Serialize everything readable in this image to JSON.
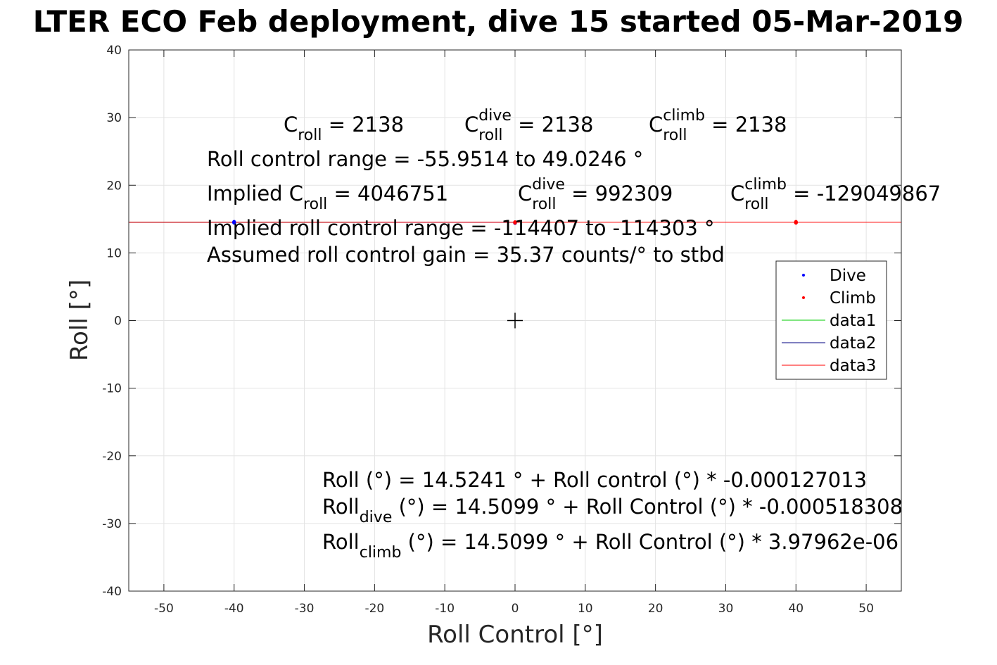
{
  "chart_data": {
    "type": "scatter",
    "title": "LTER ECO Feb deployment, dive 15 started 05-Mar-2019",
    "xlabel": "Roll Control [°]",
    "ylabel": "Roll [°]",
    "xlim": [
      -55,
      55
    ],
    "ylim": [
      -40,
      40
    ],
    "xticks": [
      -50,
      -40,
      -30,
      -20,
      -10,
      0,
      10,
      20,
      30,
      40,
      50
    ],
    "yticks": [
      -40,
      -30,
      -20,
      -10,
      0,
      10,
      20,
      30,
      40
    ],
    "xtick_labels": [
      "-50",
      "-40",
      "-30",
      "-20",
      "-10",
      "0",
      "10",
      "20",
      "30",
      "40",
      "50"
    ],
    "ytick_labels": [
      "-40",
      "-30",
      "-20",
      "-10",
      "0",
      "10",
      "20",
      "30",
      "40"
    ],
    "grid": true,
    "legend_position": "right",
    "series": [
      {
        "name": "Dive",
        "style": "points",
        "color": "#0000ff",
        "x": [
          -40,
          -40,
          -40,
          0,
          0
        ],
        "y": [
          14.55,
          14.45,
          14.6,
          14.5,
          14.4
        ]
      },
      {
        "name": "Climb",
        "style": "points",
        "color": "#ff0000",
        "x": [
          0,
          0,
          40,
          40,
          40
        ],
        "y": [
          14.55,
          14.45,
          14.6,
          14.45,
          14.5
        ]
      },
      {
        "name": "data1",
        "style": "line",
        "color": "#00cc00",
        "x": [
          -55,
          -21
        ],
        "y": [
          14.53,
          14.53
        ]
      },
      {
        "name": "data2",
        "style": "line",
        "color": "#000080",
        "x": [
          -55,
          0
        ],
        "y": [
          14.53,
          14.53
        ]
      },
      {
        "name": "data3",
        "style": "line",
        "color": "#ff0000",
        "x": [
          -55,
          55
        ],
        "y": [
          14.52,
          14.52
        ]
      }
    ],
    "center_marker": {
      "x": 0,
      "y": 0
    },
    "annotations": {
      "c_roll": {
        "base": "C",
        "sub": "roll",
        "rest": " = 2138"
      },
      "c_roll_dive": {
        "base": "C",
        "sup": "dive",
        "sub": "roll",
        "rest": " = 2138"
      },
      "c_roll_climb": {
        "base": "C",
        "sup": "climb",
        "sub": "roll",
        "rest": " = 2138"
      },
      "range": "Roll control range = -55.9514 to 49.0246 °",
      "implied_c_roll": {
        "base": "Implied C",
        "sub": "roll",
        "rest": " = 4046751"
      },
      "implied_c_roll_dive": {
        "base": "C",
        "sup": "dive",
        "sub": "roll",
        "rest": " = 992309"
      },
      "implied_c_roll_climb": {
        "base": "C",
        "sup": "climb",
        "sub": "roll",
        "rest": " = -129049867"
      },
      "implied_range": "Implied roll control range = -114407 to -114303 °",
      "gain": "Assumed roll control gain = 35.37 counts/° to stbd",
      "fit_all": "Roll (°) = 14.5241 ° + Roll control (°) * -0.000127013",
      "fit_dive": {
        "base": "Roll",
        "sub": "dive",
        "rest": " (°) = 14.5099 ° + Roll Control (°) * -0.000518308"
      },
      "fit_climb": {
        "base": "Roll",
        "sub": "climb",
        "rest": " (°) = 14.5099 ° + Roll Control (°) * 3.97962e-06"
      }
    }
  }
}
